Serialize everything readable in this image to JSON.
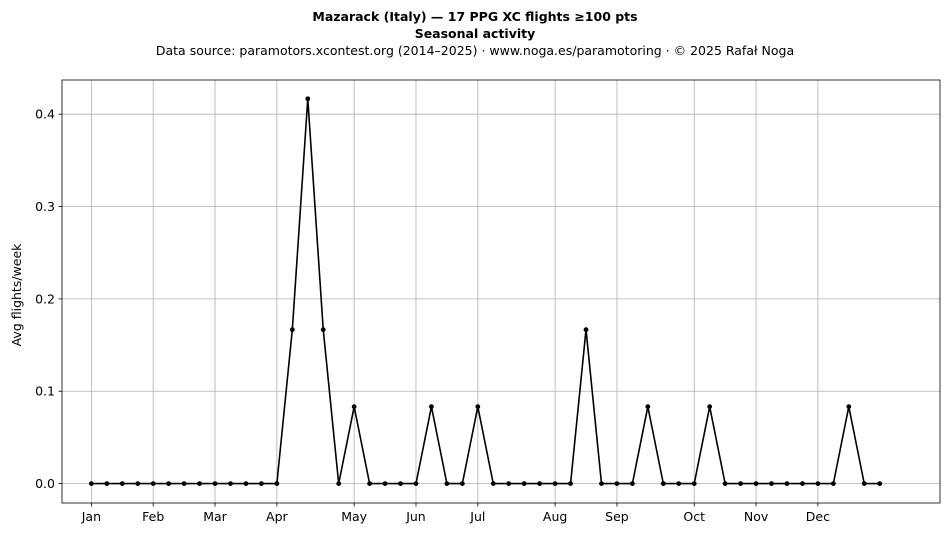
{
  "chart_data": {
    "type": "line",
    "title": "Mazarack (Italy)  —  17 PPG XC flights ≥100 pts",
    "subtitle": "Seasonal activity",
    "source": "Data source: paramotors.xcontest.org (2014–2025)  ·  www.noga.es/paramotoring  ·  © 2025 Rafał Noga",
    "xlabel": "",
    "ylabel": "Avg flights/week",
    "x_unit": "week",
    "xlim": [
      -1.9,
      54.9
    ],
    "ylim": [
      -0.021,
      0.437
    ],
    "grid": true,
    "color": "#000000",
    "x_ticks": [
      {
        "label": "Jan",
        "week": 0
      },
      {
        "label": "Feb",
        "week": 4
      },
      {
        "label": "Mar",
        "week": 8
      },
      {
        "label": "Apr",
        "week": 12
      },
      {
        "label": "May",
        "week": 17
      },
      {
        "label": "Jun",
        "week": 21
      },
      {
        "label": "Jul",
        "week": 25
      },
      {
        "label": "Aug",
        "week": 30
      },
      {
        "label": "Sep",
        "week": 34
      },
      {
        "label": "Oct",
        "week": 39
      },
      {
        "label": "Nov",
        "week": 43
      },
      {
        "label": "Dec",
        "week": 47
      }
    ],
    "y_ticks": [
      0.0,
      0.1,
      0.2,
      0.3,
      0.4
    ],
    "y_tick_labels": [
      "0.0",
      "0.1",
      "0.2",
      "0.3",
      "0.4"
    ],
    "series": [
      {
        "values": [
          0,
          0,
          0,
          0,
          0,
          0,
          0,
          0,
          0,
          0,
          0,
          0,
          0,
          0.1667,
          0.4167,
          0.1667,
          0,
          0.0833,
          0,
          0,
          0,
          0,
          0.0833,
          0,
          0,
          0.0833,
          0,
          0,
          0,
          0,
          0,
          0,
          0.1667,
          0,
          0,
          0,
          0.0833,
          0,
          0,
          0,
          0.0833,
          0,
          0,
          0,
          0,
          0,
          0,
          0,
          0,
          0.0833,
          0,
          0
        ]
      }
    ]
  }
}
